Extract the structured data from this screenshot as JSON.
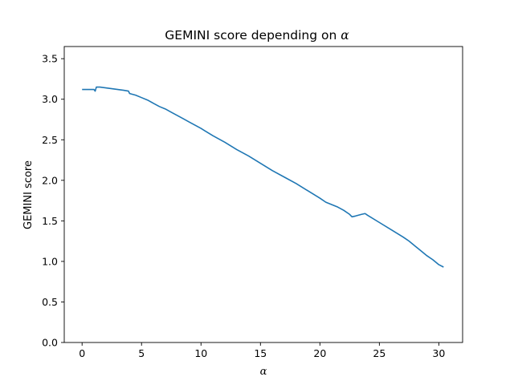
{
  "chart_data": {
    "type": "line",
    "title": "GEMINI score depending on α",
    "title_prefix": "GEMINI score depending on ",
    "title_symbol": "α",
    "xlabel": "α",
    "ylabel": "GEMINI score",
    "xlim": [
      -1.5,
      32
    ],
    "ylim": [
      0.0,
      3.65
    ],
    "x_ticks": [
      0,
      5,
      10,
      15,
      20,
      25,
      30
    ],
    "x_tick_labels": [
      "0",
      "5",
      "10",
      "15",
      "20",
      "25",
      "30"
    ],
    "y_ticks": [
      0.0,
      0.5,
      1.0,
      1.5,
      2.0,
      2.5,
      3.0,
      3.5
    ],
    "y_tick_labels": [
      "0.0",
      "0.5",
      "1.0",
      "1.5",
      "2.0",
      "2.5",
      "3.0",
      "3.5"
    ],
    "grid": false,
    "series": [
      {
        "color": "#1f77b4",
        "x": [
          0.0,
          0.5,
          1.0,
          1.1,
          1.2,
          1.3,
          1.5,
          2.0,
          2.5,
          3.0,
          3.5,
          3.9,
          4.0,
          4.5,
          5.0,
          5.5,
          6.0,
          6.5,
          7.0,
          7.5,
          8.0,
          8.5,
          9.0,
          9.5,
          10.0,
          11.0,
          12.0,
          13.0,
          14.0,
          15.0,
          16.0,
          17.0,
          18.0,
          19.0,
          20.0,
          20.5,
          21.0,
          21.5,
          22.0,
          22.5,
          22.7,
          23.0,
          23.5,
          23.8,
          24.0,
          25.0,
          26.0,
          27.0,
          27.5,
          28.0,
          28.5,
          29.0,
          29.5,
          30.0,
          30.4
        ],
        "y": [
          3.12,
          3.12,
          3.12,
          3.1,
          3.15,
          3.15,
          3.15,
          3.14,
          3.13,
          3.12,
          3.11,
          3.1,
          3.07,
          3.05,
          3.02,
          2.99,
          2.95,
          2.91,
          2.88,
          2.84,
          2.8,
          2.76,
          2.72,
          2.68,
          2.64,
          2.55,
          2.47,
          2.38,
          2.3,
          2.21,
          2.12,
          2.04,
          1.96,
          1.87,
          1.78,
          1.73,
          1.7,
          1.67,
          1.63,
          1.58,
          1.55,
          1.56,
          1.58,
          1.59,
          1.57,
          1.48,
          1.39,
          1.3,
          1.25,
          1.19,
          1.13,
          1.07,
          1.02,
          0.96,
          0.93
        ]
      }
    ]
  }
}
